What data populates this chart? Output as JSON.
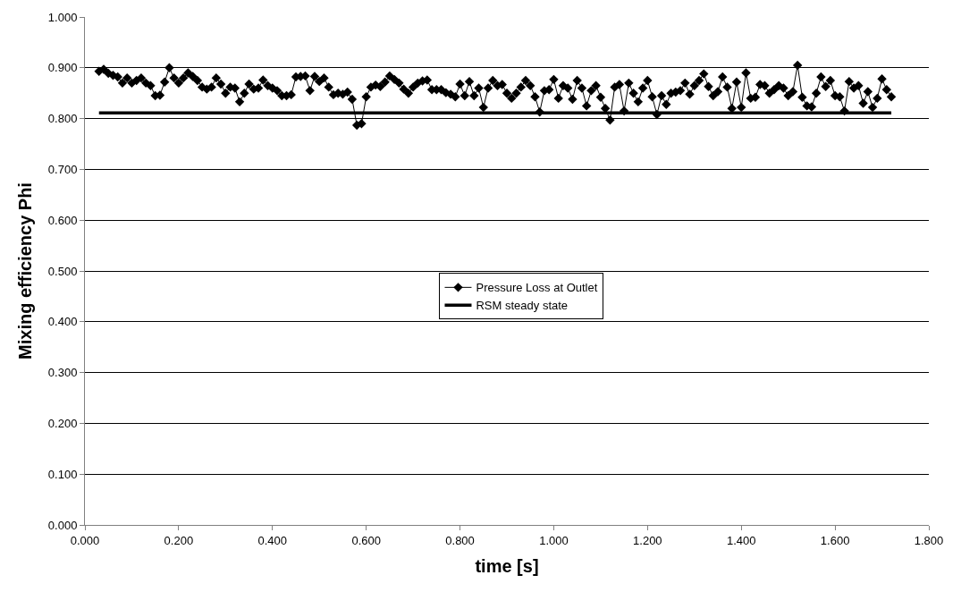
{
  "chart_data": {
    "type": "line",
    "xlabel": "time [s]",
    "ylabel": "Mixing efficiency Phi",
    "series": [
      {
        "name": "Pressure Loss at Outlet",
        "color": "#000000",
        "marker": "diamond",
        "line_style": "solid",
        "x": [
          0.03,
          0.04,
          0.05,
          0.06,
          0.07,
          0.08,
          0.09,
          0.1,
          0.11,
          0.12,
          0.13,
          0.14,
          0.15,
          0.16,
          0.17,
          0.18,
          0.19,
          0.2,
          0.21,
          0.22,
          0.23,
          0.24,
          0.25,
          0.26,
          0.27,
          0.28,
          0.29,
          0.3,
          0.31,
          0.32,
          0.33,
          0.34,
          0.35,
          0.36,
          0.37,
          0.38,
          0.39,
          0.4,
          0.41,
          0.42,
          0.43,
          0.44,
          0.45,
          0.46,
          0.47,
          0.48,
          0.49,
          0.5,
          0.51,
          0.52,
          0.53,
          0.54,
          0.55,
          0.56,
          0.57,
          0.58,
          0.59,
          0.6,
          0.61,
          0.62,
          0.63,
          0.64,
          0.65,
          0.66,
          0.67,
          0.68,
          0.69,
          0.7,
          0.71,
          0.72,
          0.73,
          0.74,
          0.75,
          0.76,
          0.77,
          0.78,
          0.79,
          0.8,
          0.81,
          0.82,
          0.83,
          0.84,
          0.85,
          0.86,
          0.87,
          0.88,
          0.89,
          0.9,
          0.91,
          0.92,
          0.93,
          0.94,
          0.95,
          0.96,
          0.97,
          0.98,
          0.99,
          1.0,
          1.01,
          1.02,
          1.03,
          1.04,
          1.05,
          1.06,
          1.07,
          1.08,
          1.09,
          1.1,
          1.11,
          1.12,
          1.13,
          1.14,
          1.15,
          1.16,
          1.17,
          1.18,
          1.19,
          1.2,
          1.21,
          1.22,
          1.23,
          1.24,
          1.25,
          1.26,
          1.27,
          1.28,
          1.29,
          1.3,
          1.31,
          1.32,
          1.33,
          1.34,
          1.35,
          1.36,
          1.37,
          1.38,
          1.39,
          1.4,
          1.41,
          1.42,
          1.43,
          1.44,
          1.45,
          1.46,
          1.47,
          1.48,
          1.49,
          1.5,
          1.51,
          1.52,
          1.53,
          1.54,
          1.55,
          1.56,
          1.57,
          1.58,
          1.59,
          1.6,
          1.61,
          1.62,
          1.63,
          1.64,
          1.65,
          1.66,
          1.67,
          1.68,
          1.69,
          1.7,
          1.71,
          1.72
        ],
        "values": [
          0.893,
          0.897,
          0.889,
          0.885,
          0.882,
          0.87,
          0.88,
          0.87,
          0.875,
          0.88,
          0.87,
          0.865,
          0.845,
          0.846,
          0.872,
          0.9,
          0.88,
          0.87,
          0.88,
          0.89,
          0.883,
          0.875,
          0.862,
          0.858,
          0.862,
          0.88,
          0.868,
          0.85,
          0.862,
          0.86,
          0.833,
          0.85,
          0.868,
          0.858,
          0.86,
          0.876,
          0.865,
          0.86,
          0.855,
          0.845,
          0.845,
          0.847,
          0.882,
          0.883,
          0.884,
          0.855,
          0.883,
          0.873,
          0.88,
          0.862,
          0.847,
          0.85,
          0.848,
          0.852,
          0.838,
          0.787,
          0.79,
          0.843,
          0.862,
          0.866,
          0.863,
          0.872,
          0.884,
          0.877,
          0.87,
          0.858,
          0.85,
          0.862,
          0.87,
          0.874,
          0.876,
          0.857,
          0.857,
          0.857,
          0.851,
          0.848,
          0.843,
          0.868,
          0.845,
          0.873,
          0.845,
          0.86,
          0.822,
          0.86,
          0.875,
          0.865,
          0.867,
          0.85,
          0.84,
          0.85,
          0.862,
          0.875,
          0.865,
          0.843,
          0.813,
          0.855,
          0.857,
          0.877,
          0.84,
          0.865,
          0.86,
          0.838,
          0.875,
          0.86,
          0.825,
          0.855,
          0.865,
          0.842,
          0.82,
          0.797,
          0.862,
          0.867,
          0.815,
          0.87,
          0.85,
          0.833,
          0.86,
          0.875,
          0.843,
          0.808,
          0.845,
          0.828,
          0.85,
          0.852,
          0.855,
          0.87,
          0.848,
          0.865,
          0.875,
          0.888,
          0.863,
          0.845,
          0.853,
          0.882,
          0.862,
          0.82,
          0.872,
          0.822,
          0.89,
          0.84,
          0.842,
          0.867,
          0.865,
          0.85,
          0.857,
          0.865,
          0.86,
          0.845,
          0.853,
          0.905,
          0.842,
          0.825,
          0.823,
          0.85,
          0.882,
          0.863,
          0.875,
          0.845,
          0.843,
          0.815,
          0.873,
          0.86,
          0.865,
          0.83,
          0.853,
          0.822,
          0.84,
          0.878,
          0.857,
          0.843
        ]
      },
      {
        "name": "RSM steady state",
        "color": "#000000",
        "marker": "none",
        "line_style": "solid",
        "x": [
          0.03,
          1.72
        ],
        "values": [
          0.811,
          0.811
        ]
      }
    ],
    "xlim": [
      0,
      1.8
    ],
    "xticks": [
      {
        "value": 0,
        "label": "0.000"
      },
      {
        "value": 0.2,
        "label": "0.200"
      },
      {
        "value": 0.4,
        "label": "0.400"
      },
      {
        "value": 0.6,
        "label": "0.600"
      },
      {
        "value": 0.8,
        "label": "0.800"
      },
      {
        "value": 1.0,
        "label": "1.000"
      },
      {
        "value": 1.2,
        "label": "1.200"
      },
      {
        "value": 1.4,
        "label": "1.400"
      },
      {
        "value": 1.6,
        "label": "1.600"
      },
      {
        "value": 1.8,
        "label": "1.800"
      }
    ],
    "ylim": [
      0,
      1
    ],
    "yticks": [
      {
        "value": 0,
        "label": "0.000"
      },
      {
        "value": 0.1,
        "label": "0.100"
      },
      {
        "value": 0.2,
        "label": "0.200"
      },
      {
        "value": 0.3,
        "label": "0.300"
      },
      {
        "value": 0.4,
        "label": "0.400"
      },
      {
        "value": 0.5,
        "label": "0.500"
      },
      {
        "value": 0.6,
        "label": "0.600"
      },
      {
        "value": 0.7,
        "label": "0.700"
      },
      {
        "value": 0.8,
        "label": "0.800"
      },
      {
        "value": 0.9,
        "label": "0.900"
      },
      {
        "value": 1.0,
        "label": "1.000"
      }
    ],
    "grid": "y",
    "legend": "center"
  }
}
